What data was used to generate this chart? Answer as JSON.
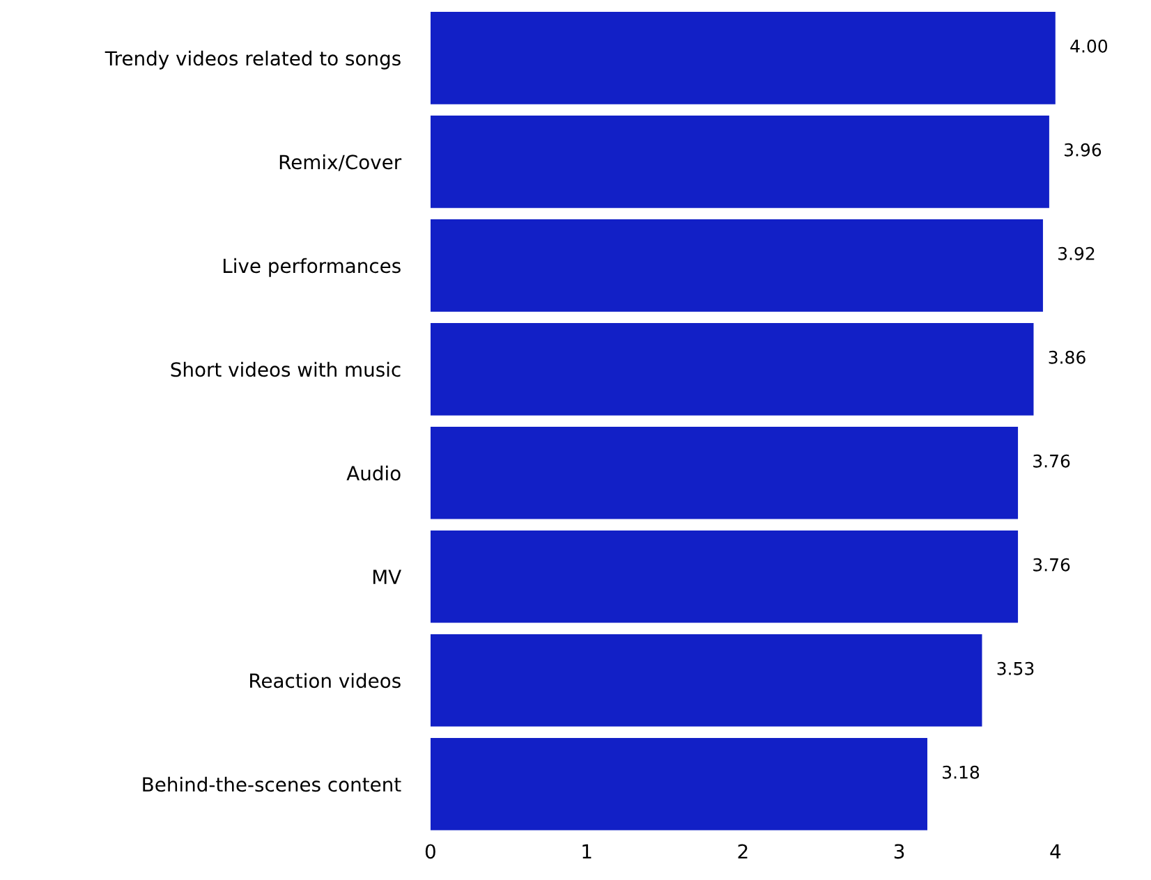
{
  "chart_data": {
    "type": "bar",
    "orientation": "horizontal",
    "categories": [
      "Trendy videos related to songs",
      "Remix/Cover",
      "Live performances",
      "Short videos with music",
      "Audio",
      "MV",
      "Reaction videos",
      "Behind-the-scenes content"
    ],
    "values": [
      4.0,
      3.96,
      3.92,
      3.86,
      3.76,
      3.76,
      3.53,
      3.18
    ],
    "value_labels": [
      "4.00",
      "3.96",
      "3.92",
      "3.86",
      "3.76",
      "3.76",
      "3.53",
      "3.18"
    ],
    "color": "#1220c6",
    "xlim": [
      0,
      4
    ],
    "xticks": [
      0,
      1,
      2,
      3,
      4
    ],
    "grid": false,
    "legend": false
  }
}
